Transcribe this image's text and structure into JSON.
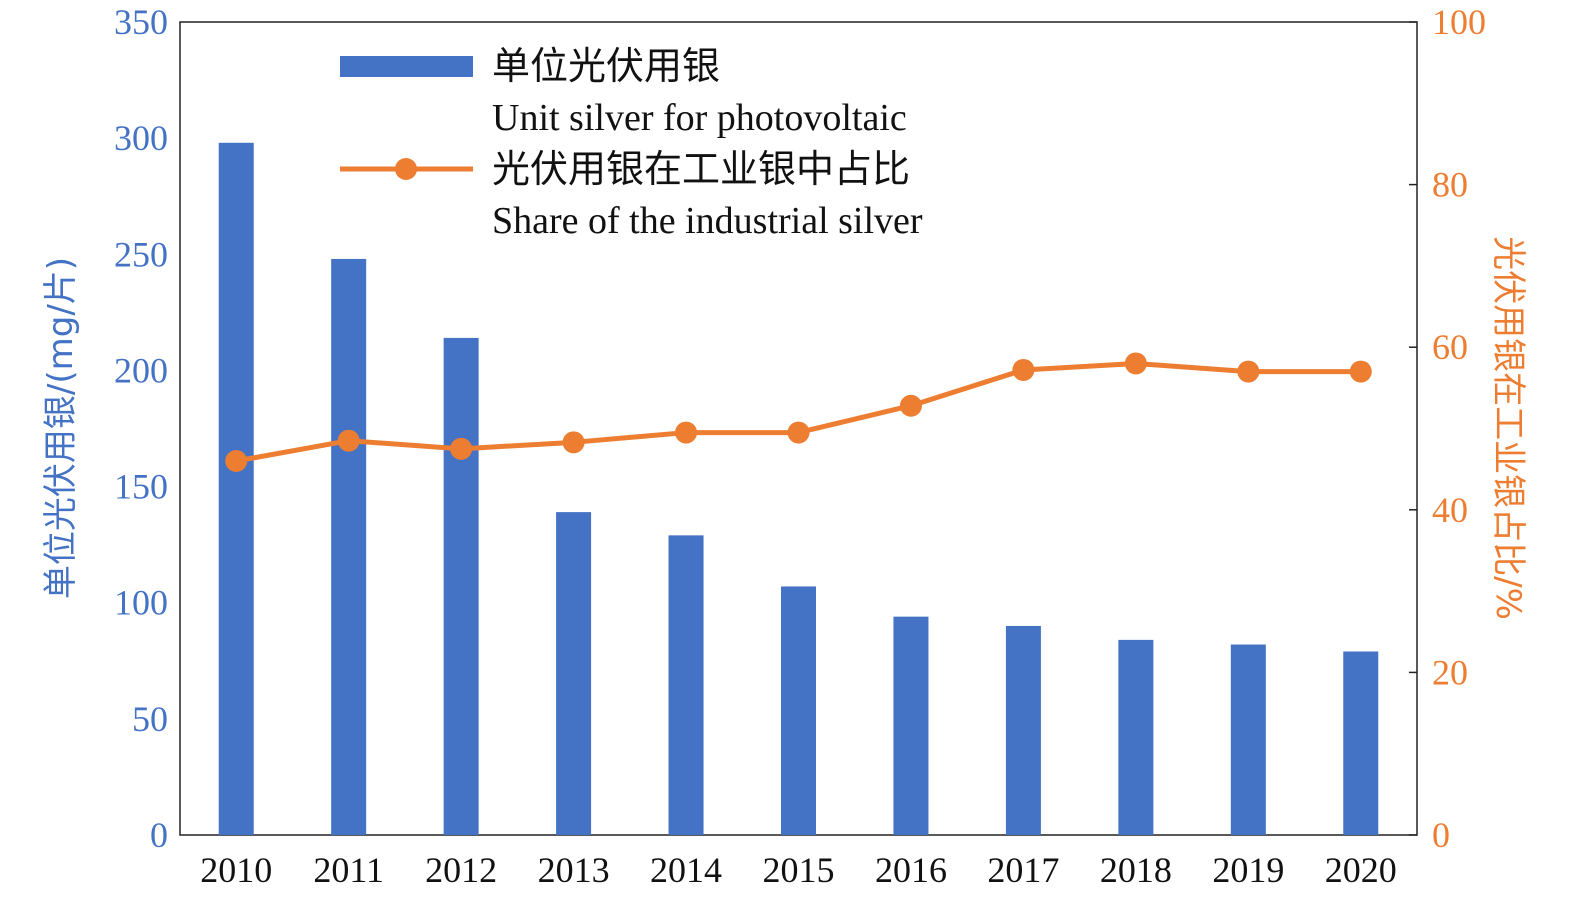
{
  "chart_data": {
    "type": "bar+line",
    "categories": [
      "2010",
      "2011",
      "2012",
      "2013",
      "2014",
      "2015",
      "2016",
      "2017",
      "2018",
      "2019",
      "2020"
    ],
    "series": [
      {
        "name": "单位光伏用银",
        "name_en": "Unit silver for photovoltaic",
        "type": "bar",
        "axis": "left",
        "color": "#4472C4",
        "values": [
          298,
          248,
          214,
          139,
          129,
          107,
          94,
          90,
          84,
          82,
          79
        ]
      },
      {
        "name": "光伏用银在工业银中占比",
        "name_en": "Share of the industrial silver",
        "type": "line",
        "axis": "right",
        "color": "#ED7D31",
        "values": [
          46,
          48.5,
          47.5,
          48.3,
          49.5,
          49.5,
          52.8,
          57.2,
          58,
          57,
          57
        ]
      }
    ],
    "ylabel_left": "单位光伏用银/(mg/片)",
    "ylabel_right": "光伏用银在工业银占比/%",
    "ylim_left": [
      0,
      350
    ],
    "ylim_right": [
      0,
      100
    ],
    "yticks_left": [
      "0",
      "50",
      "100",
      "150",
      "200",
      "250",
      "300",
      "350"
    ],
    "yticks_right": [
      "0",
      "20",
      "40",
      "60",
      "80",
      "100"
    ],
    "grid": false,
    "legend_position": "top-left"
  }
}
